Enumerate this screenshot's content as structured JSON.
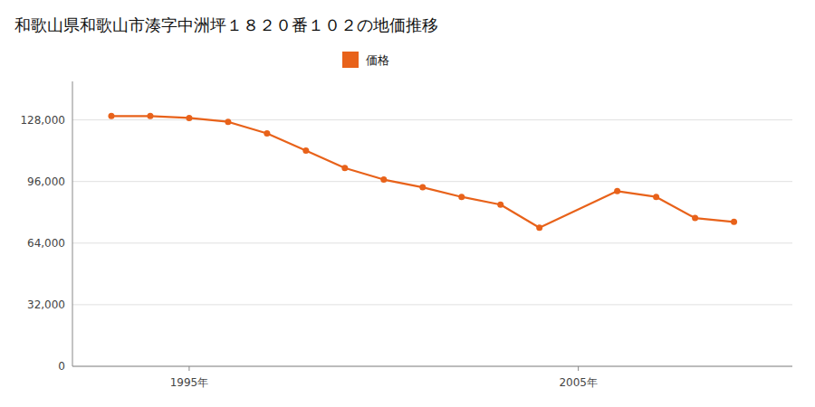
{
  "chart_data": {
    "type": "line",
    "title": "和歌山県和歌山市湊字中洲坪１８２０番１０２の地価推移",
    "x": [
      1993,
      1994,
      1995,
      1996,
      1997,
      1998,
      1999,
      2000,
      2001,
      2002,
      2003,
      2004,
      2006,
      2007,
      2008,
      2009
    ],
    "series": [
      {
        "name": "価格",
        "color": "#E8621A",
        "marker": "circle",
        "values": [
          130000,
          130000,
          129000,
          127000,
          121000,
          112000,
          103000,
          97000,
          93000,
          88000,
          84000,
          72000,
          91000,
          88000,
          77000,
          75000
        ]
      }
    ],
    "xlim": [
      1992,
      2010.5
    ],
    "xticks": [
      {
        "value": 1995,
        "label": "1995年"
      },
      {
        "value": 2005,
        "label": "2005年"
      }
    ],
    "ylim": [
      0,
      148000
    ],
    "yticks": [
      0,
      {
        "value": 32000,
        "label": "32,000"
      },
      {
        "value": 64000,
        "label": "64,000"
      },
      {
        "value": 96000,
        "label": "96,000"
      },
      {
        "value": 128000,
        "label": "128,000"
      }
    ],
    "grid": true,
    "legend": "top"
  }
}
